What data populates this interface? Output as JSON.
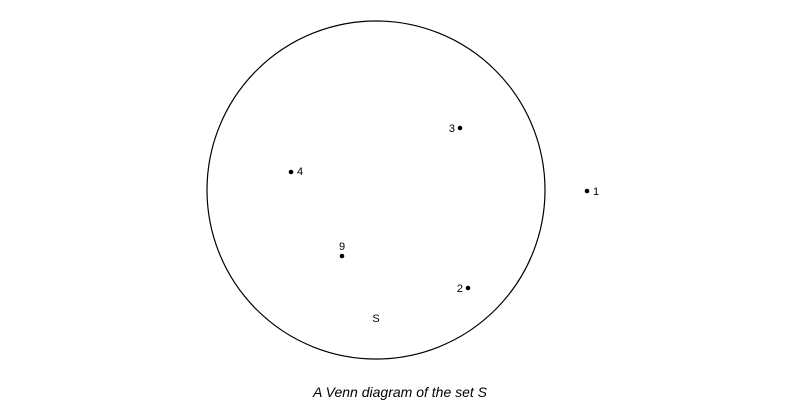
{
  "diagram": {
    "type": "venn",
    "caption": "A Venn diagram of the set S",
    "sets": [
      {
        "name": "S",
        "members": [
          "3",
          "4",
          "9",
          "2"
        ]
      }
    ],
    "elements": [
      {
        "label": "3",
        "in_set": "S"
      },
      {
        "label": "4",
        "in_set": "S"
      },
      {
        "label": "9",
        "in_set": "S"
      },
      {
        "label": "2",
        "in_set": "S"
      },
      {
        "label": "1",
        "in_set": null
      }
    ],
    "colors": {
      "outline": "#000000",
      "dot": "#000000",
      "background": "#ffffff"
    }
  }
}
